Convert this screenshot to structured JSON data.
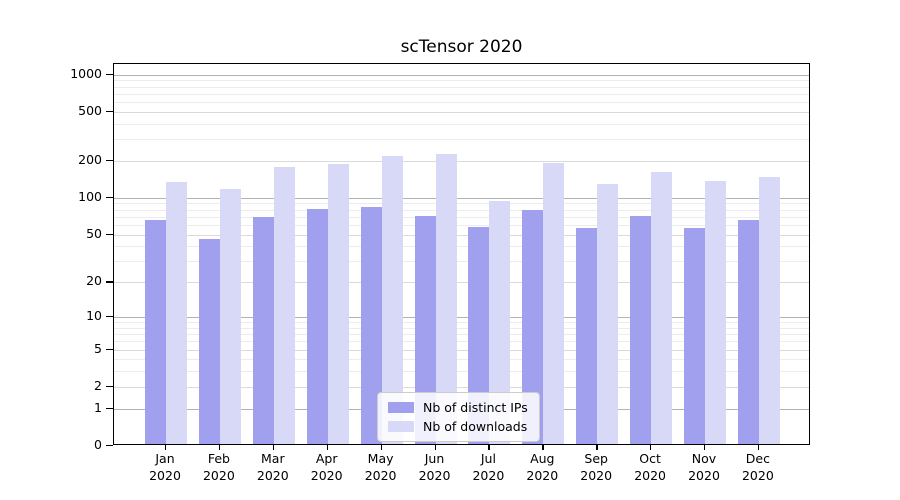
{
  "figure_title": "scTensor 2020",
  "chart_data": {
    "type": "bar",
    "title": "scTensor 2020",
    "xlabel": "",
    "ylabel": "",
    "year_label": "2020",
    "categories": [
      "Jan",
      "Feb",
      "Mar",
      "Apr",
      "May",
      "Jun",
      "Jul",
      "Aug",
      "Sep",
      "Oct",
      "Nov",
      "Dec"
    ],
    "series": [
      {
        "key": "distinct-ips",
        "name": "Nb of distinct IPs",
        "color": "#a0a0ee",
        "values": [
          63,
          44,
          67,
          78,
          81,
          68,
          56,
          76,
          55,
          69,
          55,
          63
        ]
      },
      {
        "key": "downloads",
        "name": "Nb of downloads",
        "color": "#d8d8f7",
        "values": [
          130,
          114,
          171,
          183,
          212,
          218,
          91,
          185,
          124,
          156,
          133,
          143
        ]
      }
    ],
    "yticks": [
      0,
      1,
      2,
      5,
      10,
      20,
      50,
      100,
      200,
      500,
      1000
    ],
    "scale": "log1p",
    "ylim": [
      0,
      1218
    ],
    "grid": true,
    "legend_position": "lower center"
  }
}
